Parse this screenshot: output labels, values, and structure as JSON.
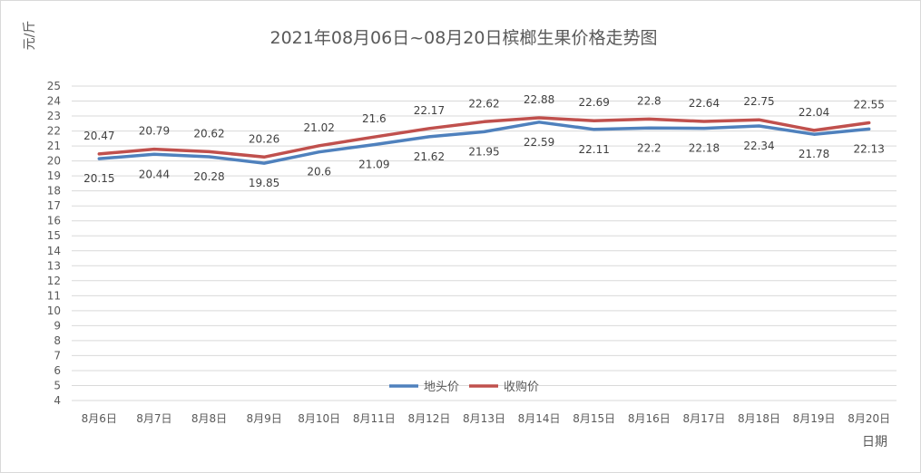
{
  "chart_data": {
    "type": "line",
    "title": "2021年08月06日~08月20日槟榔生果价格走势图",
    "ylabel": "元/斤",
    "xlabel": "日期",
    "ylim": [
      4,
      25
    ],
    "yticks": [
      4,
      5,
      6,
      7,
      8,
      9,
      10,
      11,
      12,
      13,
      14,
      15,
      16,
      17,
      18,
      19,
      20,
      21,
      22,
      23,
      24,
      25
    ],
    "grid": true,
    "legend_position": "bottom-center",
    "categories": [
      "8月6日",
      "8月7日",
      "8月8日",
      "8月9日",
      "8月10日",
      "8月11日",
      "8月12日",
      "8月13日",
      "8月14日",
      "8月15日",
      "8月16日",
      "8月17日",
      "8月18日",
      "8月19日",
      "8月20日"
    ],
    "series": [
      {
        "name": "地头价",
        "color": "#4f81bd",
        "label_side": "below",
        "values": [
          20.15,
          20.44,
          20.28,
          19.85,
          20.6,
          21.09,
          21.62,
          21.95,
          22.59,
          22.11,
          22.2,
          22.18,
          22.34,
          21.78,
          22.13
        ]
      },
      {
        "name": "收购价",
        "color": "#c0504d",
        "label_side": "above",
        "values": [
          20.47,
          20.79,
          20.62,
          20.26,
          21.02,
          21.6,
          22.17,
          22.62,
          22.88,
          22.69,
          22.8,
          22.64,
          22.75,
          22.04,
          22.55
        ]
      }
    ]
  }
}
